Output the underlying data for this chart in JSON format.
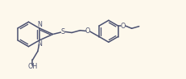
{
  "bg_color": "#fdf8ec",
  "line_color": "#4a5070",
  "line_width": 1.1,
  "text_color": "#4a5070",
  "font_size": 5.8,
  "fig_width": 2.32,
  "fig_height": 0.98,
  "xlim": [
    0,
    10.5
  ],
  "ylim": [
    0,
    4.5
  ]
}
